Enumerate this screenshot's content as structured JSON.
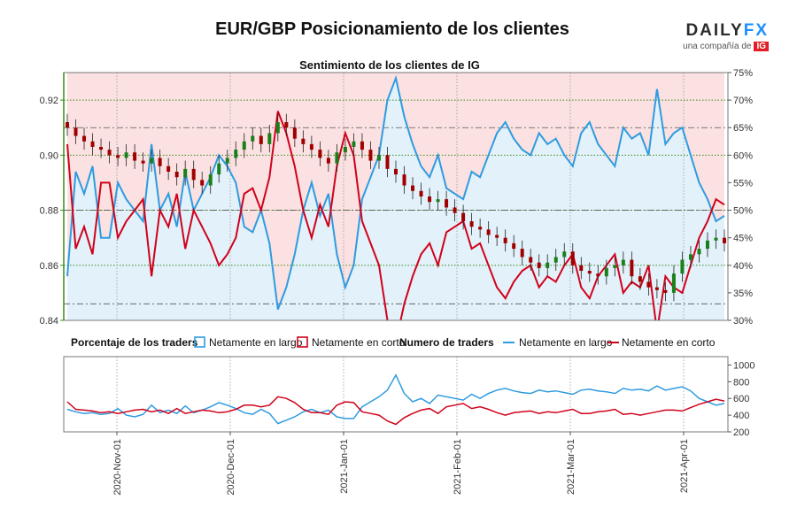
{
  "header": {
    "title": "EUR/GBP Posicionamiento de los clientes",
    "subtitle": "Sentimiento de los clientes de IG"
  },
  "logo": {
    "wordmark_a": "DAILY",
    "wordmark_b": "FX",
    "tagline": "una compañía de",
    "badge": "IG"
  },
  "colors": {
    "long": "#2f9be0",
    "short": "#d0021b",
    "long_fill": "#e3f1fb",
    "short_fill": "#fbe1e1",
    "up_candle": "#1a7f1a",
    "down_candle": "#a00000",
    "axis_green": "#3a8a1a"
  },
  "legend": {
    "pct_title": "Porcentaje de los traders",
    "pct_long": "Netamente en largo",
    "pct_short": "Netamente en corto",
    "num_title": "Numero de traders",
    "num_long": "Netamente en largo",
    "num_short": "Netamente en corto"
  },
  "chart_data": [
    {
      "type": "candlestick_with_area",
      "title": "Sentimiento de los clientes de IG",
      "price_axis": {
        "ticks": [
          "0.92",
          "0.90",
          "0.88",
          "0.86",
          "0.84"
        ],
        "range": [
          0.84,
          0.93
        ]
      },
      "percent_axis": {
        "ticks": [
          "75%",
          "70%",
          "65%",
          "60%",
          "55%",
          "50%",
          "45%",
          "40%",
          "35%",
          "30%"
        ],
        "range": [
          30,
          75
        ]
      },
      "x_ticks": [
        "2020-Nov-01",
        "2020-Dec-01",
        "2021-Jan-01",
        "2021-Feb-01",
        "2021-Mar-01",
        "2021-Apr-01"
      ],
      "price_close": [
        0.91,
        0.907,
        0.905,
        0.903,
        0.902,
        0.9,
        0.899,
        0.901,
        0.898,
        0.897,
        0.899,
        0.896,
        0.894,
        0.892,
        0.895,
        0.891,
        0.889,
        0.893,
        0.897,
        0.899,
        0.902,
        0.905,
        0.907,
        0.904,
        0.908,
        0.912,
        0.91,
        0.906,
        0.904,
        0.902,
        0.899,
        0.897,
        0.901,
        0.903,
        0.905,
        0.902,
        0.898,
        0.9,
        0.895,
        0.893,
        0.889,
        0.887,
        0.885,
        0.883,
        0.884,
        0.881,
        0.879,
        0.876,
        0.874,
        0.873,
        0.871,
        0.87,
        0.868,
        0.866,
        0.863,
        0.861,
        0.859,
        0.861,
        0.863,
        0.865,
        0.86,
        0.858,
        0.857,
        0.856,
        0.859,
        0.86,
        0.862,
        0.856,
        0.854,
        0.852,
        0.851,
        0.85,
        0.857,
        0.862,
        0.864,
        0.866,
        0.869,
        0.87,
        0.868
      ],
      "percent_long": [
        38,
        57,
        53,
        58,
        45,
        45,
        55,
        52,
        50,
        48,
        62,
        50,
        53,
        47,
        57,
        50,
        53,
        56,
        60,
        58,
        55,
        47,
        46,
        50,
        44,
        32,
        36,
        42,
        50,
        55,
        49,
        53,
        42,
        36,
        40,
        52,
        56,
        60,
        70,
        74,
        67,
        62,
        58,
        56,
        60,
        54,
        53,
        52,
        57,
        56,
        60,
        64,
        66,
        63,
        61,
        60,
        64,
        62,
        63,
        60,
        58,
        64,
        66,
        62,
        60,
        58,
        65,
        63,
        64,
        60,
        72,
        62,
        64,
        65,
        60,
        55,
        52,
        48,
        49
      ],
      "percent_short": "100 - percent_long"
    },
    {
      "type": "line",
      "title": "Numero de traders",
      "y_ticks": [
        "1000",
        "800",
        "600",
        "400",
        "200"
      ],
      "y_range": [
        200,
        1100
      ],
      "series": [
        {
          "name": "Netamente en largo",
          "values": [
            470,
            440,
            420,
            430,
            410,
            420,
            480,
            400,
            380,
            410,
            520,
            430,
            460,
            420,
            510,
            430,
            460,
            500,
            550,
            520,
            480,
            430,
            410,
            470,
            420,
            300,
            340,
            380,
            440,
            470,
            430,
            460,
            380,
            360,
            360,
            500,
            560,
            620,
            700,
            880,
            660,
            560,
            600,
            540,
            640,
            620,
            600,
            580,
            650,
            600,
            660,
            700,
            720,
            690,
            670,
            660,
            700,
            680,
            690,
            670,
            650,
            700,
            710,
            690,
            680,
            660,
            720,
            700,
            710,
            690,
            750,
            700,
            720,
            740,
            690,
            600,
            560,
            520,
            540
          ]
        },
        {
          "name": "Netamente en corto",
          "values": [
            560,
            470,
            460,
            450,
            430,
            440,
            420,
            440,
            460,
            470,
            440,
            460,
            420,
            480,
            420,
            440,
            460,
            450,
            430,
            440,
            470,
            520,
            520,
            500,
            520,
            620,
            600,
            550,
            470,
            430,
            430,
            410,
            520,
            560,
            550,
            440,
            420,
            400,
            330,
            290,
            370,
            420,
            460,
            480,
            420,
            500,
            520,
            540,
            480,
            500,
            470,
            430,
            400,
            430,
            440,
            450,
            420,
            440,
            430,
            450,
            470,
            420,
            420,
            440,
            450,
            470,
            410,
            420,
            400,
            420,
            440,
            460,
            460,
            450,
            490,
            530,
            560,
            590,
            570
          ]
        }
      ]
    }
  ]
}
